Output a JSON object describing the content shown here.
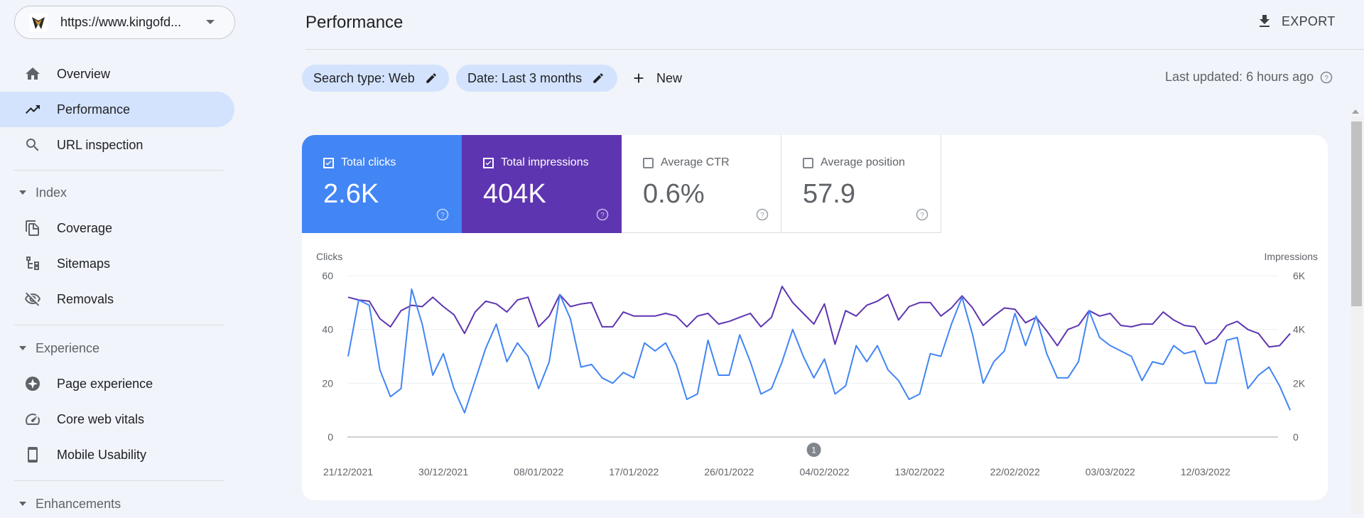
{
  "property": {
    "url": "https://www.kingofd..."
  },
  "nav": {
    "overview": "Overview",
    "performance": "Performance",
    "url_inspection": "URL inspection",
    "index_header": "Index",
    "coverage": "Coverage",
    "sitemaps": "Sitemaps",
    "removals": "Removals",
    "experience_header": "Experience",
    "page_experience": "Page experience",
    "core_web_vitals": "Core web vitals",
    "mobile_usability": "Mobile Usability",
    "enhancements_header": "Enhancements"
  },
  "header": {
    "title": "Performance",
    "export_label": "EXPORT"
  },
  "filters": {
    "search_type": "Search type: Web",
    "date": "Date: Last 3 months",
    "new_label": "New",
    "last_updated": "Last updated: 6 hours ago"
  },
  "metrics": {
    "clicks": {
      "label": "Total clicks",
      "value": "2.6K",
      "checked": true,
      "color": "#4285f4"
    },
    "impressions": {
      "label": "Total impressions",
      "value": "404K",
      "checked": true,
      "color": "#5e35b1"
    },
    "ctr": {
      "label": "Average CTR",
      "value": "0.6%",
      "checked": false
    },
    "position": {
      "label": "Average position",
      "value": "57.9",
      "checked": false
    }
  },
  "colors": {
    "accent": "#1a73e8",
    "clicks": "#4285f4",
    "impressions": "#5e35b1",
    "active_nav": "#d3e3fd"
  },
  "chart_data": {
    "type": "line",
    "xlabel": "",
    "y_left_label": "Clicks",
    "y_right_label": "Impressions",
    "y_left_ticks": [
      "0",
      "20",
      "40",
      "60"
    ],
    "y_right_ticks": [
      "0",
      "2K",
      "4K",
      "6K"
    ],
    "y_left_range": [
      0,
      60
    ],
    "y_right_range": [
      0,
      6000
    ],
    "x_tick_labels": [
      "21/12/2021",
      "30/12/2021",
      "08/01/2022",
      "17/01/2022",
      "26/01/2022",
      "04/02/2022",
      "13/02/2022",
      "22/02/2022",
      "03/03/2022",
      "12/03/2022"
    ],
    "x_tick_interval_days": 9,
    "annotation": {
      "label": "1",
      "date": "03/02/2022"
    },
    "grid": true,
    "series": [
      {
        "name": "Clicks",
        "axis": "left",
        "color": "#4285f4",
        "values": [
          30,
          51,
          49,
          25,
          15,
          18,
          55,
          42,
          23,
          31,
          18,
          9,
          21,
          33,
          42,
          28,
          35,
          30,
          18,
          28,
          53,
          44,
          26,
          27,
          22,
          20,
          24,
          22,
          35,
          32,
          35,
          27,
          14,
          16,
          36,
          23,
          23,
          38,
          28,
          16,
          18,
          28,
          40,
          30,
          22,
          29,
          16,
          19,
          34,
          28,
          34,
          25,
          21,
          14,
          16,
          31,
          30,
          42,
          52,
          38,
          20,
          28,
          32,
          46,
          34,
          45,
          31,
          22,
          22,
          28,
          47,
          37,
          34,
          32,
          30,
          21,
          28,
          27,
          34,
          31,
          32,
          20,
          20,
          36,
          37,
          18,
          23,
          26,
          19,
          10
        ]
      },
      {
        "name": "Impressions",
        "axis": "right",
        "color": "#5e35b1",
        "values": [
          5200,
          5100,
          5050,
          4400,
          4100,
          4700,
          4900,
          4850,
          5200,
          4850,
          4550,
          3850,
          4650,
          5050,
          4950,
          4650,
          5100,
          5200,
          4100,
          4500,
          5300,
          4850,
          4950,
          5000,
          4100,
          4100,
          4650,
          4500,
          4500,
          4500,
          4600,
          4500,
          4100,
          4500,
          4600,
          4200,
          4300,
          4450,
          4600,
          4100,
          4450,
          5600,
          5000,
          4600,
          4200,
          4950,
          3450,
          4700,
          4500,
          4900,
          5050,
          5300,
          4350,
          4850,
          5000,
          5000,
          4500,
          4800,
          5250,
          4800,
          4150,
          4500,
          4800,
          4750,
          4250,
          4450,
          3950,
          3400,
          4000,
          4150,
          4700,
          4500,
          4600,
          4150,
          4100,
          4200,
          4200,
          4650,
          4350,
          4150,
          4100,
          3450,
          3650,
          4150,
          4300,
          4000,
          3850,
          3350,
          3400,
          3850
        ]
      }
    ]
  }
}
